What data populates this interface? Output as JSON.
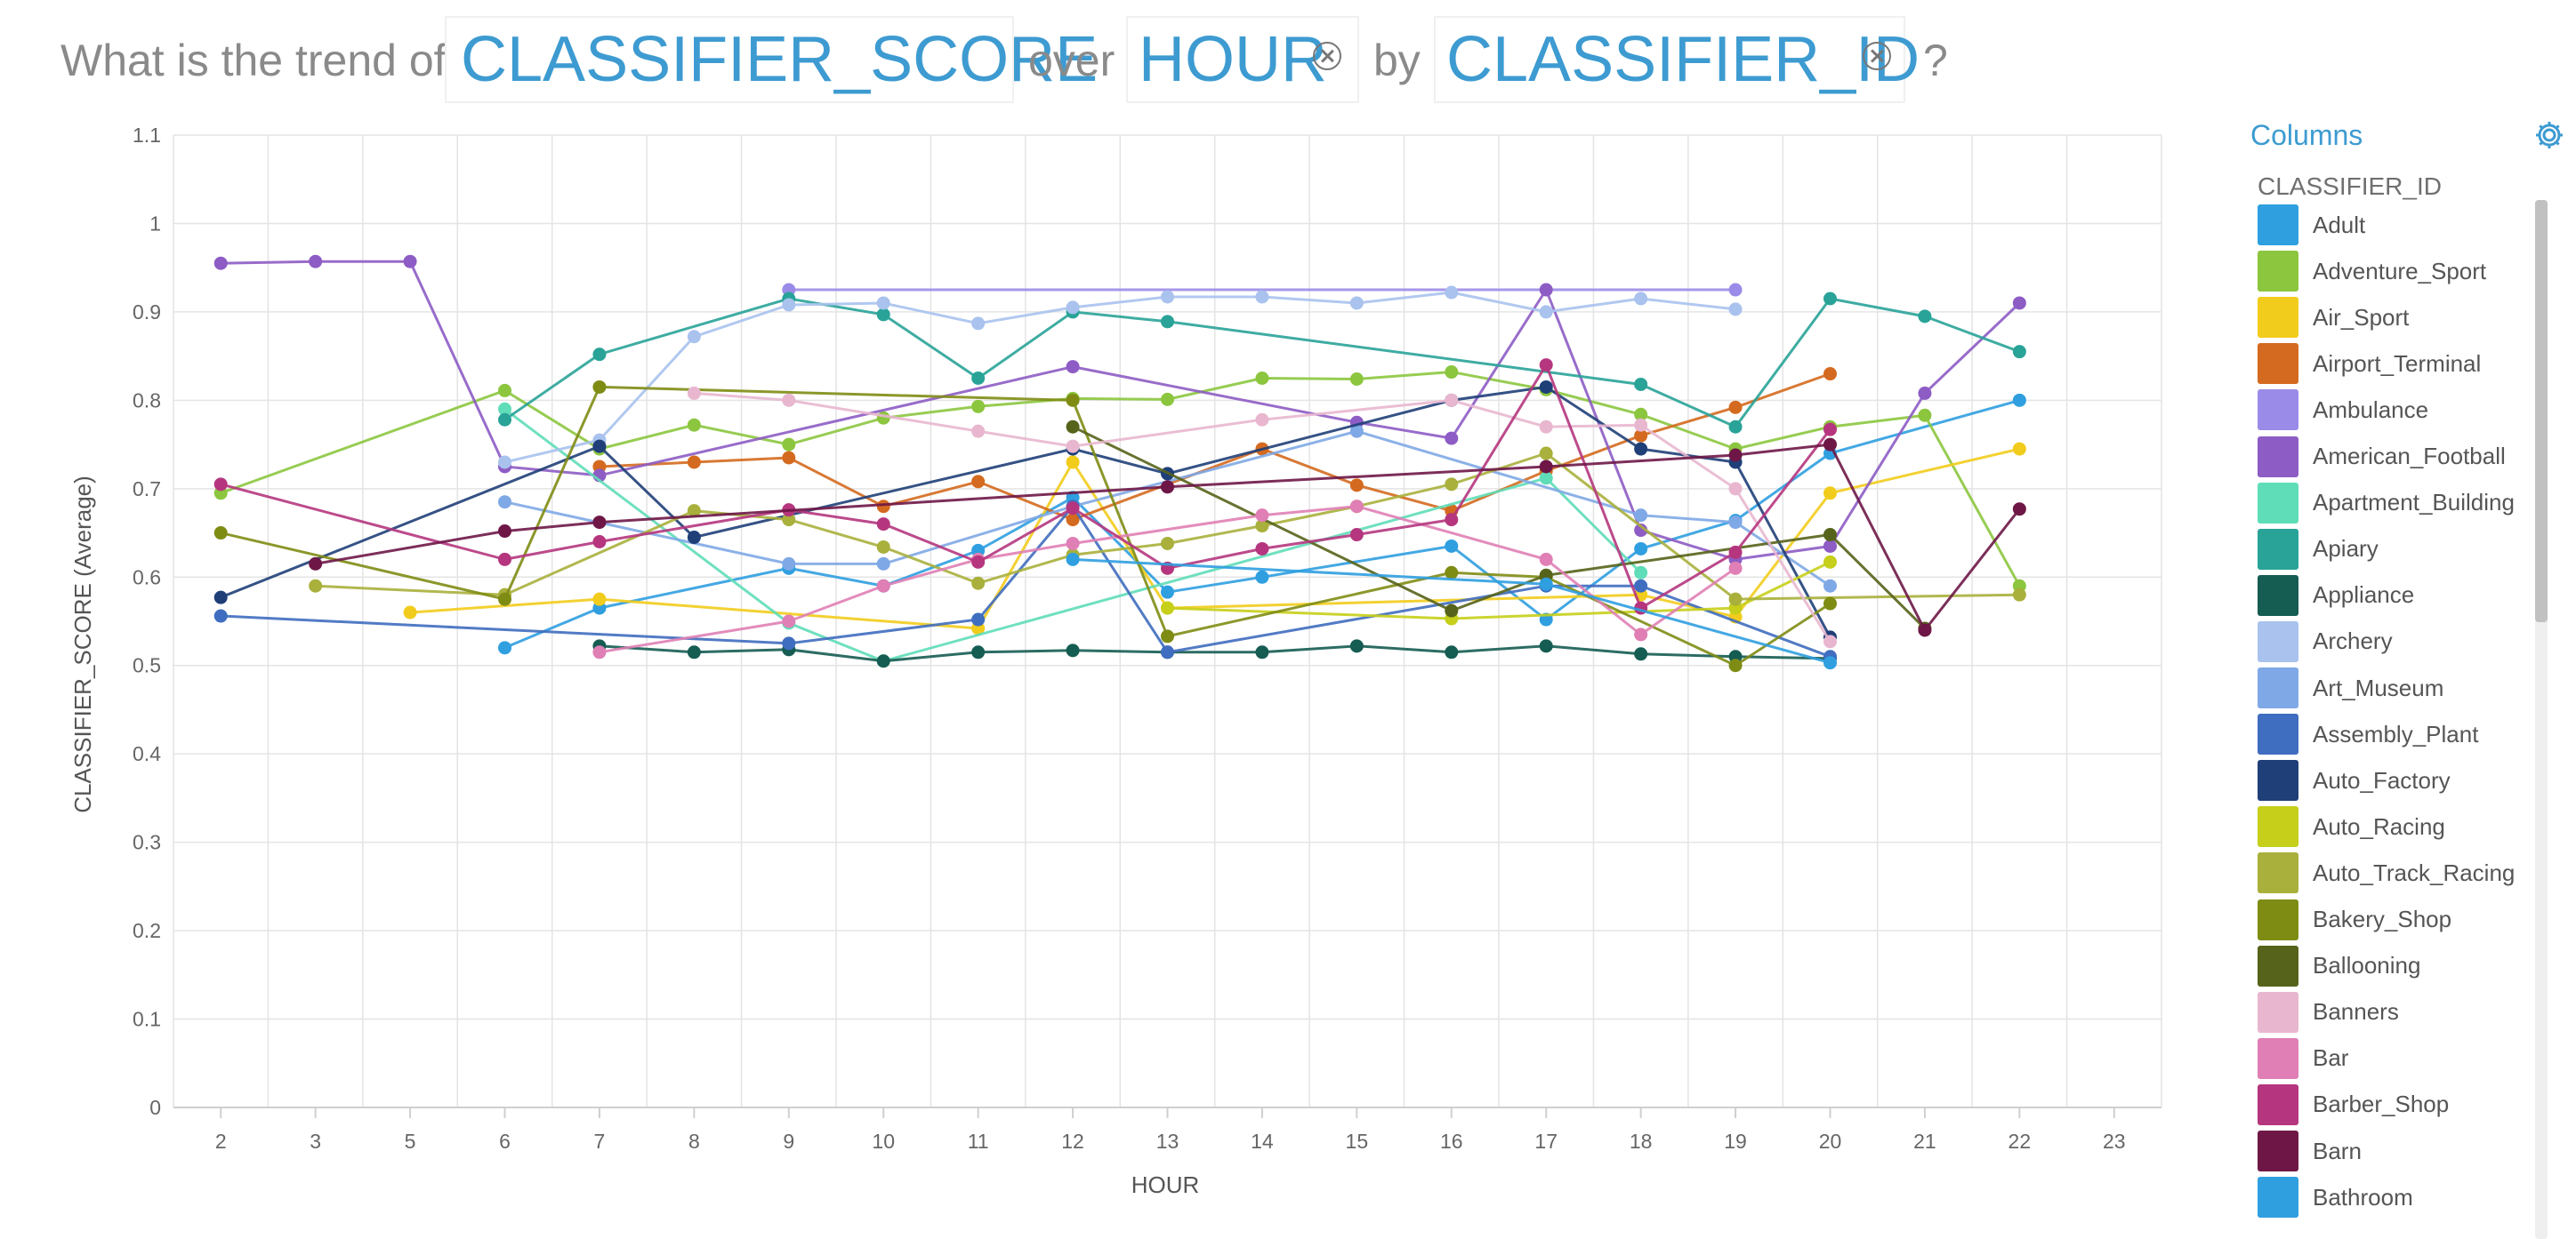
{
  "query": {
    "prefix": "What is the trend of",
    "measure": "CLASSIFIER_SCORE",
    "over_word": "over",
    "dimension": "HOUR",
    "by_word": "by",
    "group": "CLASSIFIER_ID",
    "suffix": "?"
  },
  "panel": {
    "title": "Columns",
    "group_title": "CLASSIFIER_ID"
  },
  "chart_data": {
    "type": "line",
    "xlabel": "HOUR",
    "ylabel": "CLASSIFIER_SCORE (Average)",
    "x": [
      2,
      3,
      5,
      6,
      7,
      8,
      9,
      10,
      11,
      12,
      13,
      14,
      15,
      16,
      17,
      18,
      19,
      20,
      21,
      22,
      23
    ],
    "ylim": [
      0,
      1.1
    ],
    "yticks": [
      0,
      0.1,
      0.2,
      0.3,
      0.4,
      0.5,
      0.6,
      0.7,
      0.8,
      0.9,
      1,
      1.1
    ],
    "grid": true,
    "legend": "right",
    "series": [
      {
        "name": "Adult",
        "color": "#2f9fe0",
        "points": [
          [
            6,
            0.52
          ],
          [
            7,
            0.565
          ],
          [
            9,
            0.61
          ],
          [
            10,
            0.59
          ],
          [
            11,
            0.63
          ],
          [
            12,
            0.69
          ],
          [
            13,
            0.583
          ],
          [
            14,
            0.6
          ],
          [
            16,
            0.635
          ],
          [
            17,
            0.552
          ],
          [
            18,
            0.632
          ],
          [
            19,
            0.664
          ],
          [
            20,
            0.74
          ],
          [
            22,
            0.8
          ]
        ]
      },
      {
        "name": "Adventure_Sport",
        "color": "#8cc63f",
        "points": [
          [
            2,
            0.695
          ],
          [
            6,
            0.811
          ],
          [
            7,
            0.745
          ],
          [
            8,
            0.772
          ],
          [
            9,
            0.75
          ],
          [
            10,
            0.78
          ],
          [
            11,
            0.793
          ],
          [
            12,
            0.802
          ],
          [
            13,
            0.801
          ],
          [
            14,
            0.825
          ],
          [
            15,
            0.824
          ],
          [
            16,
            0.832
          ],
          [
            17,
            0.812
          ],
          [
            18,
            0.784
          ],
          [
            19,
            0.745
          ],
          [
            20,
            0.77
          ],
          [
            21,
            0.783
          ],
          [
            22,
            0.59
          ]
        ]
      },
      {
        "name": "Air_Sport",
        "color": "#f2cc1c",
        "points": [
          [
            5,
            0.56
          ],
          [
            7,
            0.575
          ],
          [
            11,
            0.542
          ],
          [
            12,
            0.73
          ],
          [
            13,
            0.565
          ],
          [
            18,
            0.58
          ],
          [
            19,
            0.555
          ],
          [
            20,
            0.695
          ],
          [
            22,
            0.745
          ]
        ]
      },
      {
        "name": "Airport_Terminal",
        "color": "#d46a1f",
        "points": [
          [
            7,
            0.725
          ],
          [
            8,
            0.73
          ],
          [
            9,
            0.735
          ],
          [
            10,
            0.68
          ],
          [
            11,
            0.708
          ],
          [
            12,
            0.665
          ],
          [
            14,
            0.745
          ],
          [
            15,
            0.704
          ],
          [
            16,
            0.675
          ],
          [
            17,
            0.72
          ],
          [
            18,
            0.76
          ],
          [
            19,
            0.792
          ],
          [
            20,
            0.83
          ]
        ]
      },
      {
        "name": "Ambulance",
        "color": "#9b8be8",
        "points": [
          [
            9,
            0.925
          ],
          [
            19,
            0.925
          ]
        ]
      },
      {
        "name": "American_Football",
        "color": "#8d5cc4",
        "points": [
          [
            2,
            0.955
          ],
          [
            3,
            0.957
          ],
          [
            5,
            0.957
          ],
          [
            6,
            0.725
          ],
          [
            7,
            0.715
          ],
          [
            12,
            0.838
          ],
          [
            15,
            0.775
          ],
          [
            16,
            0.757
          ],
          [
            17,
            0.925
          ],
          [
            18,
            0.653
          ],
          [
            19,
            0.62
          ],
          [
            20,
            0.635
          ],
          [
            21,
            0.808
          ],
          [
            22,
            0.91
          ]
        ]
      },
      {
        "name": "Apartment_Building",
        "color": "#5fddb8",
        "points": [
          [
            6,
            0.79
          ],
          [
            9,
            0.548
          ],
          [
            10,
            0.505
          ],
          [
            17,
            0.712
          ],
          [
            18,
            0.605
          ]
        ]
      },
      {
        "name": "Apiary",
        "color": "#29a398",
        "points": [
          [
            6,
            0.778
          ],
          [
            7,
            0.852
          ],
          [
            9,
            0.915
          ],
          [
            10,
            0.897
          ],
          [
            11,
            0.825
          ],
          [
            12,
            0.9
          ],
          [
            13,
            0.889
          ],
          [
            18,
            0.818
          ],
          [
            19,
            0.77
          ],
          [
            20,
            0.915
          ],
          [
            21,
            0.895
          ],
          [
            22,
            0.855
          ]
        ]
      },
      {
        "name": "Appliance",
        "color": "#155c52",
        "points": [
          [
            7,
            0.522
          ],
          [
            8,
            0.515
          ],
          [
            9,
            0.518
          ],
          [
            10,
            0.505
          ],
          [
            11,
            0.515
          ],
          [
            12,
            0.517
          ],
          [
            13,
            0.515
          ],
          [
            14,
            0.515
          ],
          [
            15,
            0.522
          ],
          [
            16,
            0.515
          ],
          [
            17,
            0.522
          ],
          [
            18,
            0.513
          ],
          [
            19,
            0.51
          ],
          [
            20,
            0.508
          ]
        ]
      },
      {
        "name": "Archery",
        "color": "#a9c2ee",
        "points": [
          [
            6,
            0.73
          ],
          [
            7,
            0.755
          ],
          [
            8,
            0.872
          ],
          [
            9,
            0.908
          ],
          [
            10,
            0.91
          ],
          [
            11,
            0.887
          ],
          [
            12,
            0.905
          ],
          [
            13,
            0.917
          ],
          [
            14,
            0.917
          ],
          [
            15,
            0.91
          ],
          [
            16,
            0.922
          ],
          [
            17,
            0.9
          ],
          [
            18,
            0.915
          ],
          [
            19,
            0.903
          ]
        ]
      },
      {
        "name": "Art_Museum",
        "color": "#7fa8e6",
        "points": [
          [
            6,
            0.685
          ],
          [
            9,
            0.615
          ],
          [
            10,
            0.615
          ],
          [
            12,
            0.68
          ],
          [
            15,
            0.765
          ],
          [
            18,
            0.67
          ],
          [
            19,
            0.662
          ],
          [
            20,
            0.59
          ]
        ]
      },
      {
        "name": "Assembly_Plant",
        "color": "#3f6dbf",
        "points": [
          [
            2,
            0.556
          ],
          [
            9,
            0.525
          ],
          [
            11,
            0.552
          ],
          [
            12,
            0.68
          ],
          [
            13,
            0.515
          ],
          [
            17,
            0.59
          ],
          [
            18,
            0.59
          ],
          [
            20,
            0.51
          ]
        ]
      },
      {
        "name": "Auto_Factory",
        "color": "#1f3f78",
        "points": [
          [
            2,
            0.577
          ],
          [
            7,
            0.748
          ],
          [
            8,
            0.645
          ],
          [
            12,
            0.745
          ],
          [
            13,
            0.717
          ],
          [
            16,
            0.8
          ],
          [
            17,
            0.815
          ],
          [
            18,
            0.745
          ],
          [
            19,
            0.73
          ],
          [
            20,
            0.532
          ]
        ]
      },
      {
        "name": "Auto_Racing",
        "color": "#c6cf1a",
        "points": [
          [
            13,
            0.565
          ],
          [
            16,
            0.553
          ],
          [
            19,
            0.565
          ],
          [
            20,
            0.617
          ]
        ]
      },
      {
        "name": "Auto_Track_Racing",
        "color": "#a9b03c",
        "points": [
          [
            3,
            0.59
          ],
          [
            6,
            0.58
          ],
          [
            8,
            0.675
          ],
          [
            9,
            0.665
          ],
          [
            10,
            0.634
          ],
          [
            11,
            0.593
          ],
          [
            12,
            0.625
          ],
          [
            13,
            0.638
          ],
          [
            14,
            0.658
          ],
          [
            15,
            0.68
          ],
          [
            16,
            0.705
          ],
          [
            17,
            0.74
          ],
          [
            19,
            0.575
          ],
          [
            22,
            0.58
          ]
        ]
      },
      {
        "name": "Bakery_Shop",
        "color": "#7f8c14",
        "points": [
          [
            2,
            0.65
          ],
          [
            6,
            0.575
          ],
          [
            7,
            0.815
          ],
          [
            12,
            0.8
          ],
          [
            13,
            0.533
          ],
          [
            16,
            0.605
          ],
          [
            17,
            0.6
          ],
          [
            19,
            0.5
          ],
          [
            20,
            0.57
          ]
        ]
      },
      {
        "name": "Ballooning",
        "color": "#56631a",
        "points": [
          [
            12,
            0.77
          ],
          [
            16,
            0.562
          ],
          [
            17,
            0.602
          ],
          [
            20,
            0.648
          ],
          [
            21,
            0.542
          ]
        ]
      },
      {
        "name": "Banners",
        "color": "#e8b7cf",
        "points": [
          [
            8,
            0.808
          ],
          [
            9,
            0.8
          ],
          [
            11,
            0.765
          ],
          [
            12,
            0.748
          ],
          [
            14,
            0.778
          ],
          [
            16,
            0.8
          ],
          [
            17,
            0.77
          ],
          [
            18,
            0.772
          ],
          [
            19,
            0.7
          ],
          [
            20,
            0.527
          ]
        ]
      },
      {
        "name": "Bar",
        "color": "#e07fb5",
        "points": [
          [
            7,
            0.515
          ],
          [
            9,
            0.55
          ],
          [
            10,
            0.59
          ],
          [
            11,
            0.62
          ],
          [
            12,
            0.638
          ],
          [
            14,
            0.67
          ],
          [
            15,
            0.68
          ],
          [
            17,
            0.62
          ],
          [
            18,
            0.535
          ],
          [
            19,
            0.61
          ]
        ]
      },
      {
        "name": "Barber_Shop",
        "color": "#b5367e",
        "points": [
          [
            2,
            0.705
          ],
          [
            6,
            0.62
          ],
          [
            7,
            0.64
          ],
          [
            9,
            0.676
          ],
          [
            10,
            0.66
          ],
          [
            11,
            0.617
          ],
          [
            12,
            0.678
          ],
          [
            13,
            0.61
          ],
          [
            14,
            0.632
          ],
          [
            15,
            0.648
          ],
          [
            16,
            0.665
          ],
          [
            17,
            0.84
          ],
          [
            18,
            0.565
          ],
          [
            19,
            0.628
          ],
          [
            20,
            0.767
          ]
        ]
      },
      {
        "name": "Barn",
        "color": "#6e1747",
        "points": [
          [
            3,
            0.615
          ],
          [
            6,
            0.652
          ],
          [
            7,
            0.662
          ],
          [
            13,
            0.702
          ],
          [
            17,
            0.725
          ],
          [
            19,
            0.738
          ],
          [
            20,
            0.75
          ],
          [
            21,
            0.54
          ],
          [
            22,
            0.677
          ]
        ]
      },
      {
        "name": "Bathroom",
        "color": "#2f9fe0",
        "points": [
          [
            12,
            0.62
          ],
          [
            17,
            0.592
          ],
          [
            20,
            0.503
          ]
        ]
      }
    ]
  }
}
